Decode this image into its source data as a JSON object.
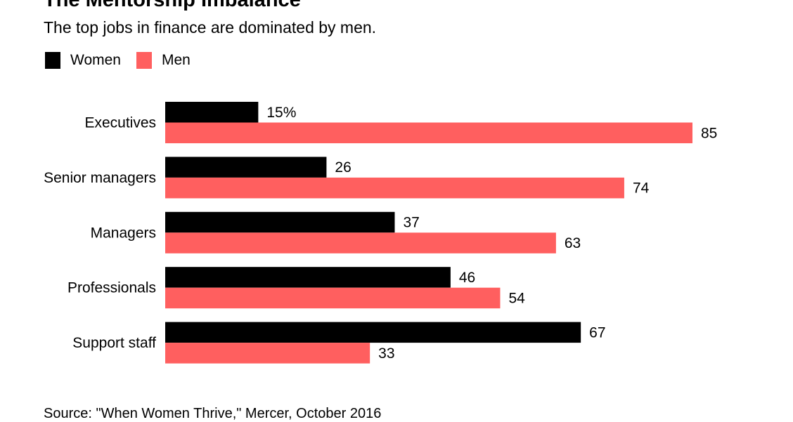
{
  "chart_data": {
    "type": "bar",
    "orientation": "horizontal",
    "title": "The Mentorship Imbalance",
    "subtitle": "The top jobs in finance are dominated by men.",
    "categories": [
      "Executives",
      "Senior managers",
      "Managers",
      "Professionals",
      "Support staff"
    ],
    "series": [
      {
        "name": "Women",
        "color": "#000000",
        "values": [
          15,
          26,
          37,
          46,
          67
        ],
        "labels": [
          "15%",
          "26",
          "37",
          "46",
          "67"
        ]
      },
      {
        "name": "Men",
        "color": "#ff5f5f",
        "values": [
          85,
          74,
          63,
          54,
          33
        ],
        "labels": [
          "85",
          "74",
          "63",
          "54",
          "33"
        ]
      }
    ],
    "xlim": [
      0,
      100
    ],
    "grid": false,
    "legend": "top-left",
    "source": "Source: \"When Women Thrive,\" Mercer, October 2016"
  }
}
